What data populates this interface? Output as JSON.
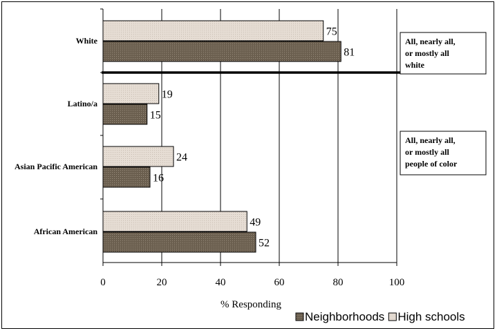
{
  "chart_data": {
    "type": "bar",
    "orientation": "horizontal",
    "categories": [
      "White",
      "Latino/a",
      "Asian Pacific American",
      "African American"
    ],
    "series": [
      {
        "name": "High schools",
        "values": [
          75,
          19,
          24,
          49
        ],
        "color": "#e6ddd4"
      },
      {
        "name": "Neighborhoods",
        "values": [
          81,
          15,
          16,
          52
        ],
        "color": "#6b5f4f"
      }
    ],
    "legend_order": [
      "Neighborhoods",
      "High schools"
    ],
    "legend_placement": "bottom-right",
    "xlabel": "% Responding",
    "xlim": [
      0,
      100
    ],
    "x_ticks": [
      "0",
      "20",
      "40",
      "60",
      "80",
      "100"
    ],
    "grid": "vertical",
    "annotations": [
      {
        "lines": [
          "All, nearly all,",
          "or mostly all",
          "white"
        ]
      },
      {
        "lines": [
          "All, nearly all,",
          "or mostly all",
          "people of color"
        ]
      }
    ]
  }
}
